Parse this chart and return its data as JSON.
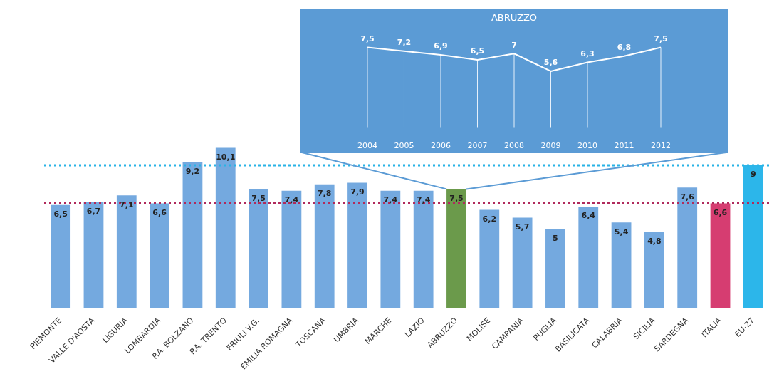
{
  "chart_data": [
    {
      "type": "bar",
      "categories": [
        "PIEMONTE",
        "VALLE D'AOSTA",
        "LIGURIA",
        "LOMBARDIA",
        "P.A. BOLZANO",
        "P.A. TRENTO",
        "FRIULI V.G.",
        "EMILIA ROMAGNA",
        "TOSCANA",
        "UMBRIA",
        "MARCHE",
        "LAZIO",
        "ABRUZZO",
        "MOLISE",
        "CAMPANIA",
        "PUGLIA",
        "BASILICATA",
        "CALABRIA",
        "SICILIA",
        "SARDEGNA",
        "ITALIA",
        "EU-27"
      ],
      "values": [
        6.5,
        6.7,
        7.1,
        6.6,
        9.2,
        10.1,
        7.5,
        7.4,
        7.8,
        7.9,
        7.4,
        7.4,
        7.5,
        6.2,
        5.7,
        5,
        6.4,
        5.4,
        4.8,
        7.6,
        6.6,
        9
      ],
      "value_labels": [
        "6,5",
        "6,7",
        "7,1",
        "6,6",
        "9,2",
        "10,1",
        "7,5",
        "7,4",
        "7,8",
        "7,9",
        "7,4",
        "7,4",
        "7,5",
        "6,2",
        "5,7",
        "5",
        "6,4",
        "5,4",
        "4,8",
        "7,6",
        "6,6",
        "9"
      ],
      "colors": [
        "#74a9df",
        "#74a9df",
        "#74a9df",
        "#74a9df",
        "#74a9df",
        "#74a9df",
        "#74a9df",
        "#74a9df",
        "#74a9df",
        "#74a9df",
        "#74a9df",
        "#74a9df",
        "#6b9a4b",
        "#74a9df",
        "#74a9df",
        "#74a9df",
        "#74a9df",
        "#74a9df",
        "#74a9df",
        "#74a9df",
        "#d63d71",
        "#2cb6ea"
      ],
      "tick_labels": "x",
      "grid": false,
      "legend": false,
      "ref_lines": [
        {
          "axis": "y",
          "value": 9,
          "color": "#29b3e6",
          "line_style": "dotted"
        },
        {
          "axis": "y",
          "value": 6.6,
          "color": "#b02a5c",
          "line_style": "dotted"
        }
      ]
    },
    {
      "type": "line",
      "title": "ABRUZZO",
      "categories": [
        "2004",
        "2005",
        "2006",
        "2007",
        "2008",
        "2009",
        "2010",
        "2011",
        "2012"
      ],
      "values": [
        7.5,
        7.2,
        6.9,
        6.5,
        7,
        5.6,
        6.3,
        6.8,
        7.5
      ],
      "value_labels": [
        "7,5",
        "7,2",
        "6,9",
        "6,5",
        "7",
        "5,6",
        "6,3",
        "6,8",
        "7,5"
      ],
      "color": "#ffffff",
      "tick_labels": "x",
      "grid": "x",
      "legend": false,
      "marker": "none",
      "line_style": "solid"
    }
  ]
}
